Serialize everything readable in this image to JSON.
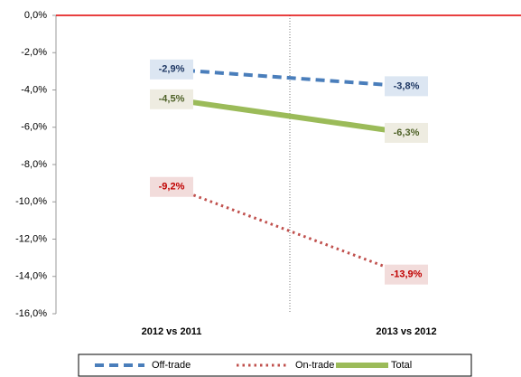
{
  "chart_data": {
    "type": "line",
    "categories": [
      "2012 vs 2011",
      "2013 vs 2012"
    ],
    "series": [
      {
        "name": "Off-trade",
        "color": "#4a7ebb",
        "line_style": "dashed",
        "label_color": "#1f3864",
        "label_fill": "#dce6f2",
        "values": [
          -2.9,
          -3.8
        ],
        "value_labels": [
          "-2,9%",
          "-3,8%"
        ]
      },
      {
        "name": "On-trade",
        "color": "#c0504d",
        "line_style": "dotted",
        "label_color": "#c00000",
        "label_fill": "#f2dcdb",
        "values": [
          -9.2,
          -13.9
        ],
        "value_labels": [
          "-9,2%",
          "-13,9%"
        ]
      },
      {
        "name": "Total",
        "color": "#9bbb59",
        "line_style": "solid",
        "label_color": "#4f6228",
        "label_fill": "#eeece1",
        "values": [
          -4.5,
          -6.3
        ],
        "value_labels": [
          "-4,5%",
          "-6,3%"
        ]
      }
    ],
    "ylim": [
      -16,
      0
    ],
    "yticks": [
      {
        "value": 0,
        "label": "0,0%"
      },
      {
        "value": -2,
        "label": "-2,0%"
      },
      {
        "value": -4,
        "label": "-4,0%"
      },
      {
        "value": -6,
        "label": "-6,0%"
      },
      {
        "value": -8,
        "label": "-8,0%"
      },
      {
        "value": -10,
        "label": "-10,0%"
      },
      {
        "value": -12,
        "label": "-12,0%"
      },
      {
        "value": -14,
        "label": "-14,0%"
      },
      {
        "value": -16,
        "label": "-16,0%"
      }
    ],
    "legend": "bottom"
  }
}
